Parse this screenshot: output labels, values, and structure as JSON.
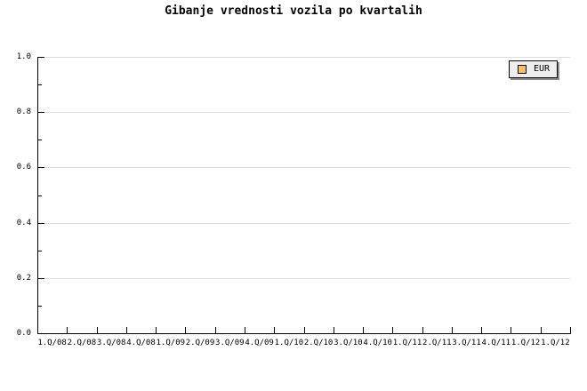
{
  "chart_data": {
    "type": "line",
    "title": "Gibanje vrednosti vozila po kvartalih",
    "categories": [
      "1.Q/08",
      "2.Q/08",
      "3.Q/08",
      "4.Q/08",
      "1.Q/09",
      "2.Q/09",
      "3.Q/09",
      "4.Q/09",
      "1.Q/10",
      "2.Q/10",
      "3.Q/10",
      "4.Q/10",
      "1.Q/11",
      "2.Q/11",
      "3.Q/11",
      "4.Q/11",
      "1.Q/12",
      "1.Q/12"
    ],
    "series": [
      {
        "name": "EUR",
        "color": "#fbc05a",
        "values": []
      }
    ],
    "xlabel": "",
    "ylabel": "",
    "ylim": [
      0.0,
      1.0
    ],
    "ytick_values": [
      0.0,
      0.2,
      0.4,
      0.6,
      0.8,
      1.0
    ],
    "ytick_labels": [
      "0.0",
      "0.2",
      "0.4",
      "0.6",
      "0.8",
      "1.0"
    ],
    "y_minor_tick_values": [
      0.1,
      0.3,
      0.5,
      0.7,
      0.9
    ],
    "grid": "horizontal-major-only",
    "legend_position": "top-right",
    "plot_is_empty": true
  },
  "legend": {
    "label": "EUR",
    "swatch_color": "#fbc05a"
  },
  "colors": {
    "background": "#ffffff",
    "axis": "#000000",
    "grid": "#dcdcdc",
    "text": "#000000",
    "legend_bg": "#ededed",
    "legend_border": "#000000",
    "legend_shadow": "#8c8c8c"
  }
}
